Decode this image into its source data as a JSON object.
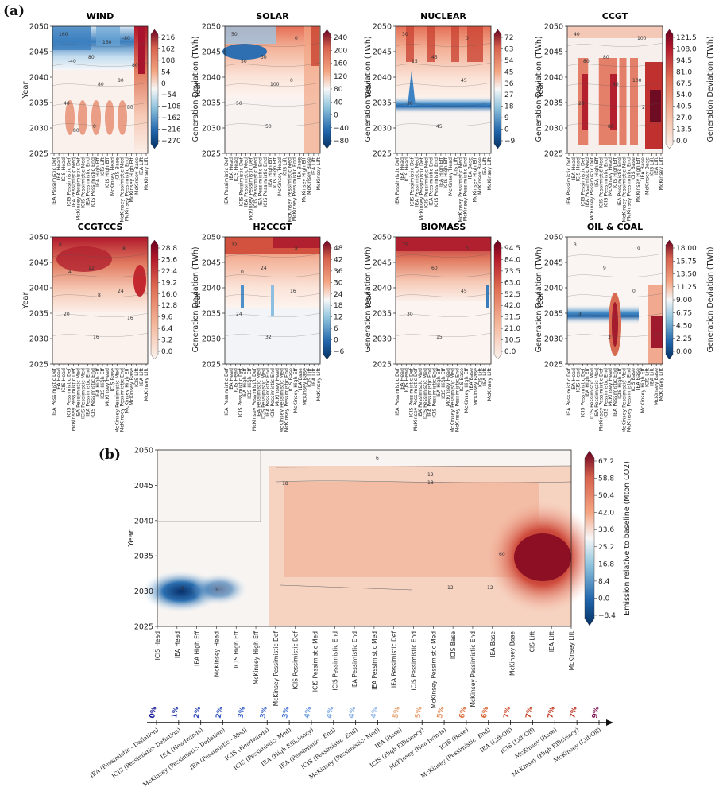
{
  "figure": {
    "label_a": "(a)",
    "label_b": "(b)"
  },
  "chart_data": [
    {
      "type": "heatmap",
      "title": "WIND",
      "ylabel": "Year",
      "yticks": [
        "2025",
        "2030",
        "2035",
        "2040",
        "2045",
        "2050"
      ],
      "colorbar_label": "Generation Deviation (TWh)",
      "colorbar_ticks": [
        "216",
        "162",
        "108",
        "54",
        "0",
        "−54",
        "−108",
        "−162",
        "−216",
        "−270"
      ],
      "colormap": "diverging-blue-red",
      "xcategories": [
        "IEA Pessimistic Def",
        "IEA Head",
        "ICIS Head",
        "ICIS Pessimistic Def",
        "IEA Pessimistic Med",
        "McKinsey Pessimistic Def",
        "ICIS Pessimistic Med",
        "IEA Pessimistic End",
        "ICIS Pessimistic End",
        "IEA High Eff",
        "ICIS Lift",
        "ICIS High Eff",
        "McKinsey Head",
        "ICIS Base",
        "McKinsey Pessimistic Med",
        "McKinsey Pessimistic End",
        "McKinsey High Eff",
        "McKinsey Base",
        "IEA Lift",
        "McKinsey Lift"
      ],
      "contour_labels": [
        "160",
        "80",
        "80",
        "40",
        "0",
        "-80",
        "-40",
        "80",
        "80",
        "80",
        "160",
        "80"
      ]
    },
    {
      "type": "heatmap",
      "title": "SOLAR",
      "ylabel": "Year",
      "yticks": [
        "2025",
        "2030",
        "2035",
        "2040",
        "2045",
        "2050"
      ],
      "colorbar_label": "Generation Deviation (TWh)",
      "colorbar_ticks": [
        "240",
        "200",
        "160",
        "120",
        "80",
        "40",
        "0",
        "−40",
        "−80"
      ],
      "colormap": "diverging-blue-red",
      "xcategories": [
        "IEA Pessimistic Def",
        "IEA Head",
        "ICIS Head",
        "ICIS Pessimistic Def",
        "IEA Pessimistic Med",
        "McKinsey Pessimistic Def",
        "ICIS Pessimistic Med",
        "IEA Pessimistic End",
        "ICIS Pessimistic End",
        "IEA High Eff",
        "ICIS High Eff",
        "McKinsey Head",
        "ICIS Lift",
        "McKinsey Pessimistic Med",
        "McKinsey Pessimistic End",
        "IEA Base",
        "McKinsey High Eff",
        "McKinsey Base",
        "IEA Lift",
        "McKinsey Lift"
      ],
      "contour_labels": [
        "50",
        "50",
        "0",
        "50",
        "50",
        "0",
        "50",
        "100"
      ]
    },
    {
      "type": "heatmap",
      "title": "NUCLEAR",
      "ylabel": "Year",
      "yticks": [
        "2025",
        "2030",
        "2035",
        "2040",
        "2045",
        "2050"
      ],
      "colorbar_label": "Generation Deviation (TWh)",
      "colorbar_ticks": [
        "72",
        "63",
        "54",
        "45",
        "36",
        "27",
        "18",
        "9",
        "0",
        "−9"
      ],
      "colormap": "diverging-blue-red",
      "xcategories": [
        "IEA Pessimistic Def",
        "IEA Head",
        "ICIS Head",
        "ICIS Pessimistic Def",
        "IEA Pessimistic Med",
        "McKinsey Pessimistic Def",
        "ICIS Pessimistic Med",
        "IEA Pessimistic End",
        "ICIS Pessimistic End",
        "IEA High Eff",
        "ICIS High Eff",
        "McKinsey Head",
        "ICIS Lift",
        "McKinsey Pessimistic Med",
        "McKinsey Pessimistic End",
        "IEA Base",
        "McKinsey High Eff",
        "McKinsey Base",
        "IEA Lift",
        "McKinsey Lift"
      ],
      "contour_labels": [
        "30",
        "45",
        "45",
        "30",
        "45",
        "0",
        "15"
      ]
    },
    {
      "type": "heatmap",
      "title": "CCGT",
      "ylabel": "Year",
      "yticks": [
        "2025",
        "2030",
        "2035",
        "2040",
        "2045",
        "2050"
      ],
      "colorbar_label": "Generation Deviation (TWh)",
      "colorbar_ticks": [
        "121.5",
        "108.0",
        "94.5",
        "81.0",
        "67.5",
        "54.0",
        "40.5",
        "27.0",
        "13.5",
        "0.0"
      ],
      "colormap": "sequential-red",
      "xcategories": [
        "IEA Pessimistic Def",
        "IEA Head",
        "ICIS Head",
        "ICIS Pessimistic Def",
        "IEA Pessimistic Med",
        "McKinsey Pessimistic Def",
        "IEA High Eff",
        "ICIS Pessimistic Med",
        "ICIS Pessimistic End",
        "McKinsey Head",
        "ICIS High Eff",
        "IEA Pessimistic End",
        "McKinsey Pessimistic Med",
        "McKinsey Pessimistic End",
        "ICIS Base",
        "McKinsey High Eff",
        "IEA Base",
        "McKinsey Base",
        "ICIS Lift",
        "IEA Lift",
        "McKinsey Lift"
      ],
      "contour_labels": [
        "40",
        "80",
        "100",
        "20",
        "80",
        "100",
        "80",
        "40",
        "2"
      ]
    },
    {
      "type": "heatmap",
      "title": "CCGTCCS",
      "ylabel": "Year",
      "yticks": [
        "2025",
        "2030",
        "2035",
        "2040",
        "2045",
        "2050"
      ],
      "colorbar_label": "Generation Deviation (TWh)",
      "colorbar_ticks": [
        "28.8",
        "25.6",
        "22.4",
        "19.2",
        "16.0",
        "12.8",
        "9.6",
        "6.4",
        "3.2",
        "0.0"
      ],
      "colormap": "sequential-red",
      "xcategories": [
        "IEA Pessimistic Def",
        "IEA Head",
        "ICIS Head",
        "ICIS Pessimistic Def",
        "McKinsey Pessimistic Def",
        "IEA Pessimistic Med",
        "ICIS Pessimistic Med",
        "IEA Pessimistic End",
        "ICIS Pessimistic End",
        "IEA High Eff",
        "ICIS High Eff",
        "McKinsey Head",
        "ICIS Base",
        "McKinsey Pessimistic Med",
        "McKinsey Pessimistic End",
        "McKinsey High Eff",
        "McKinsey Base",
        "ICIS Lift",
        "IEA Lift",
        "McKinsey Lift"
      ],
      "contour_labels": [
        "8",
        "12",
        "24",
        "20",
        "16",
        "8",
        "4",
        "8",
        "16"
      ]
    },
    {
      "type": "heatmap",
      "title": "H2CCGT",
      "ylabel": "Year",
      "yticks": [
        "2025",
        "2030",
        "2035",
        "2040",
        "2045",
        "2050"
      ],
      "colorbar_label": "Generation Deviation (TWh)",
      "colorbar_ticks": [
        "48",
        "42",
        "36",
        "30",
        "24",
        "18",
        "12",
        "6",
        "0",
        "−6"
      ],
      "colormap": "diverging-blue-red",
      "xcategories": [
        "IEA Pessimistic Def",
        "IEA Head",
        "ICIS Head",
        "ICIS Pessimistic Def",
        "IEA High Eff",
        "ICIS High Eff",
        "McKinsey Pessimistic Def",
        "IEA Pessimistic Med",
        "ICIS Pessimistic Med",
        "IEA Pessimistic End",
        "ICIS Pessimistic End",
        "McKinsey Head",
        "McKinsey Pessimistic Med",
        "McKinsey Pessimistic End",
        "ICIS Base",
        "McKinsey High Eff",
        "IEA Base",
        "McKinsey Base",
        "ICIS Lift",
        "IEA Lift",
        "McKinsey Lift"
      ],
      "contour_labels": [
        "32",
        "24",
        "16",
        "24",
        "32",
        "8",
        "0"
      ]
    },
    {
      "type": "heatmap",
      "title": "BIOMASS",
      "ylabel": "Year",
      "yticks": [
        "2025",
        "2030",
        "2035",
        "2040",
        "2045",
        "2050"
      ],
      "colorbar_label": "Generation Deviation (TWh)",
      "colorbar_ticks": [
        "94.5",
        "84.0",
        "73.5",
        "63.0",
        "52.5",
        "42.0",
        "31.5",
        "21.0",
        "10.5",
        "0.0"
      ],
      "colormap": "sequential-red",
      "xcategories": [
        "IEA Pessimistic Def",
        "IEA Head",
        "ICIS Head",
        "ICIS Pessimistic Def",
        "McKinsey Pessimistic Def",
        "IEA Pessimistic Med",
        "ICIS Pessimistic Med",
        "IEA Pessimistic End",
        "ICIS Pessimistic End",
        "IEA High Eff",
        "ICIS High Eff",
        "McKinsey Head",
        "McKinsey Pessimistic Med",
        "McKinsey Pessimistic End",
        "ICIS Base",
        "McKinsey High Eff",
        "IEA Base",
        "McKinsey Base",
        "ICIS Lift",
        "IEA Lift",
        "McKinsey Lift"
      ],
      "contour_labels": [
        "75",
        "60",
        "45",
        "30",
        "15",
        "0"
      ]
    },
    {
      "type": "heatmap",
      "title": "OIL & COAL",
      "ylabel": "Year",
      "yticks": [
        "2025",
        "2030",
        "2035",
        "2040",
        "2045",
        "2050"
      ],
      "colorbar_label": "Generation Deviation (TWh)",
      "colorbar_ticks": [
        "18.00",
        "15.75",
        "13.50",
        "11.25",
        "9.00",
        "6.75",
        "4.50",
        "2.25",
        "0.00"
      ],
      "colormap": "diverging-blue-red",
      "xcategories": [
        "IEA Pessimistic Def",
        "IEA Head",
        "ICIS Head",
        "ICIS Pessimistic Def",
        "IEA High Eff",
        "ICIS Pessimistic Med",
        "IEA Pessimistic Med",
        "McKinsey Pessimistic Def",
        "ICIS Pessimistic End",
        "McKinsey Head",
        "IEA Pessimistic End",
        "ICIS High Eff",
        "McKinsey Pessimistic Med",
        "McKinsey Pessimistic End",
        "ICIS Base",
        "IEA Base",
        "McKinsey High Eff",
        "ICIS Lift",
        "IEA Lift",
        "McKinsey Base",
        "McKinsey Lift"
      ],
      "contour_labels": [
        "3",
        "9",
        "0",
        "3",
        "3",
        "9"
      ]
    },
    {
      "type": "heatmap",
      "title": "",
      "ylabel": "Year",
      "yticks": [
        "2025",
        "2030",
        "2035",
        "2040",
        "2045",
        "2050"
      ],
      "colorbar_label": "Emission relative to baseline (Mton CO2)",
      "colorbar_ticks": [
        "67.2",
        "58.8",
        "50.4",
        "42.0",
        "33.6",
        "25.2",
        "16.8",
        "8.4",
        "0.0",
        "−8.4"
      ],
      "colormap": "diverging-blue-red",
      "xcategories": [
        "ICIS Head",
        "IEA Head",
        "IEA High Eff",
        "McKinsey Head",
        "ICIS High Eff",
        "McKinsey High Eff",
        "McKinsey Pessimistic Def",
        "ICIS Pessimistic Def",
        "ICIS Pessimistic Med",
        "ICIS Pessimistic End",
        "IEA Pessimistic End",
        "IEA Pessimistic Med",
        "IEA Pessimistic Def",
        "ICIS Pessimistic End",
        "McKinsey Pessimistic Med",
        "ICIS Base",
        "McKinsey Pessimistic End",
        "IEA Base",
        "McKinsey Base",
        "ICIS Lift",
        "IEA Lift",
        "McKinsey Lift"
      ],
      "contour_labels": [
        "6",
        "12",
        "18",
        "18",
        "0",
        "0",
        "12",
        "12",
        "60"
      ]
    },
    {
      "type": "ranking",
      "percentages": [
        "0%",
        "1%",
        "2%",
        "2%",
        "3%",
        "3%",
        "3%",
        "4%",
        "4%",
        "4%",
        "4%",
        "5%",
        "5%",
        "5%",
        "6%",
        "6%",
        "7%",
        "7%",
        "7%",
        "7%",
        "9%"
      ],
      "percentage_colors": [
        "#1a1a99",
        "#2233aa",
        "#2b47b8",
        "#3355c2",
        "#3860c8",
        "#3b64cc",
        "#4470d2",
        "#6a9ae0",
        "#79a6e4",
        "#86b0e6",
        "#94b8e8",
        "#e8a878",
        "#e89a68",
        "#e48e5a",
        "#dc7040",
        "#d96a3a",
        "#cc4a2a",
        "#c84428",
        "#c03820",
        "#b82e1c",
        "#7a1050"
      ],
      "labels": [
        "IEA (Pessimistic - Deflation)",
        "ICIS (Pessimistic- Deflation)",
        "IEA (Headwinds)",
        "McKinsey (Pessimistic- Deflation)",
        "IEA (Pessimistic - Med)",
        "ICIS (Headwinds)",
        "ICIS (Pessimistic- Med)",
        "IEA (High Efficiency)",
        "IEA (Pessimistic - End)",
        "ICIS (Pessimistic- End)",
        "McKinsey (Pessimistic- Med)",
        "IEA (Base)",
        "ICIS (High Efficiency)",
        "McKinsey (Headwinds)",
        "ICIS (Base)",
        "McKinsey (Pessimistic- End)",
        "IEA (Lift-Off)",
        "ICIS (Lift-Off)",
        "McKinsey (Base)",
        "McKinsey (High Efficiency)",
        "McKinsey (Lift-Off)"
      ]
    }
  ]
}
